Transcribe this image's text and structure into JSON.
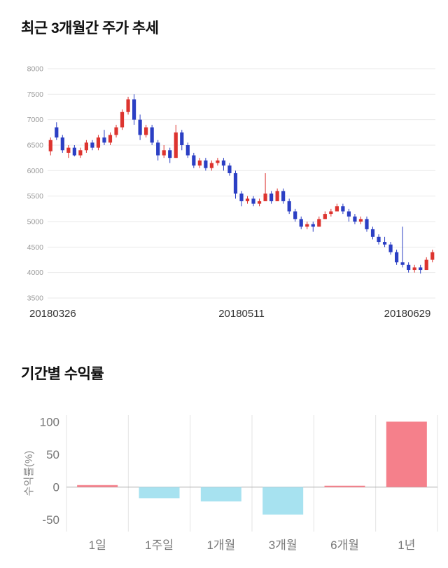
{
  "section1": {
    "title": "최근 3개월간 주가 추세"
  },
  "section2": {
    "title": "기간별 수익률"
  },
  "chart_data": [
    {
      "type": "candlestick",
      "title": "최근 3개월간 주가 추세",
      "ylim": [
        3500,
        8000
      ],
      "yticks": [
        3500,
        4000,
        4500,
        5000,
        5500,
        6000,
        6500,
        7000,
        7500,
        8000
      ],
      "xtick_labels": [
        "20180326",
        "20180511",
        "20180629"
      ],
      "up_color": "#dd342f",
      "down_color": "#2b3fc4",
      "grid_color": "#e9e9e9",
      "tick_color": "#999999",
      "xlabel_color": "#333333",
      "candles": [
        [
          6380,
          6650,
          6300,
          6600
        ],
        [
          6850,
          6950,
          6600,
          6650
        ],
        [
          6650,
          6700,
          6350,
          6400
        ],
        [
          6350,
          6500,
          6250,
          6450
        ],
        [
          6450,
          6500,
          6280,
          6300
        ],
        [
          6300,
          6450,
          6250,
          6400
        ],
        [
          6400,
          6600,
          6350,
          6550
        ],
        [
          6550,
          6600,
          6400,
          6450
        ],
        [
          6450,
          6700,
          6400,
          6650
        ],
        [
          6650,
          6800,
          6500,
          6550
        ],
        [
          6550,
          6750,
          6500,
          6700
        ],
        [
          6700,
          6900,
          6650,
          6850
        ],
        [
          6850,
          7200,
          6800,
          7150
        ],
        [
          7150,
          7450,
          7100,
          7400
        ],
        [
          7400,
          7500,
          6900,
          7000
        ],
        [
          7000,
          7100,
          6600,
          6700
        ],
        [
          6700,
          6900,
          6650,
          6850
        ],
        [
          6850,
          6900,
          6500,
          6550
        ],
        [
          6550,
          6600,
          6200,
          6300
        ],
        [
          6300,
          6500,
          6250,
          6400
        ],
        [
          6400,
          6450,
          6150,
          6250
        ],
        [
          6250,
          6900,
          6250,
          6750
        ],
        [
          6750,
          6800,
          6400,
          6500
        ],
        [
          6500,
          6550,
          6250,
          6300
        ],
        [
          6300,
          6350,
          6050,
          6100
        ],
        [
          6100,
          6250,
          6050,
          6200
        ],
        [
          6200,
          6250,
          6000,
          6050
        ],
        [
          6050,
          6200,
          6000,
          6150
        ],
        [
          6150,
          6250,
          6100,
          6200
        ],
        [
          6200,
          6250,
          6000,
          6100
        ],
        [
          6100,
          6150,
          5900,
          5950
        ],
        [
          5950,
          6000,
          5450,
          5550
        ],
        [
          5550,
          5600,
          5300,
          5400
        ],
        [
          5400,
          5500,
          5350,
          5450
        ],
        [
          5450,
          5500,
          5300,
          5350
        ],
        [
          5350,
          5450,
          5300,
          5400
        ],
        [
          5400,
          5950,
          5400,
          5550
        ],
        [
          5550,
          5600,
          5350,
          5400
        ],
        [
          5400,
          5650,
          5400,
          5600
        ],
        [
          5600,
          5650,
          5350,
          5400
        ],
        [
          5400,
          5450,
          5150,
          5200
        ],
        [
          5200,
          5250,
          5000,
          5050
        ],
        [
          5050,
          5100,
          4850,
          4900
        ],
        [
          4900,
          5000,
          4850,
          4950
        ],
        [
          4950,
          5000,
          4800,
          4900
        ],
        [
          4900,
          5100,
          4900,
          5050
        ],
        [
          5050,
          5200,
          5050,
          5150
        ],
        [
          5150,
          5250,
          5100,
          5200
        ],
        [
          5200,
          5350,
          5200,
          5300
        ],
        [
          5300,
          5350,
          5150,
          5200
        ],
        [
          5200,
          5250,
          5000,
          5100
        ],
        [
          5100,
          5150,
          4950,
          5000
        ],
        [
          5000,
          5100,
          4950,
          5050
        ],
        [
          5050,
          5100,
          4800,
          4850
        ],
        [
          4850,
          4900,
          4650,
          4700
        ],
        [
          4700,
          4750,
          4550,
          4600
        ],
        [
          4600,
          4700,
          4500,
          4550
        ],
        [
          4550,
          4600,
          4350,
          4400
        ],
        [
          4400,
          4450,
          4150,
          4200
        ],
        [
          4200,
          4900,
          4100,
          4150
        ],
        [
          4150,
          4200,
          4000,
          4050
        ],
        [
          4050,
          4150,
          4000,
          4100
        ],
        [
          4100,
          4150,
          3980,
          4050
        ],
        [
          4050,
          4300,
          4050,
          4250
        ],
        [
          4250,
          4450,
          4200,
          4400
        ]
      ]
    },
    {
      "type": "bar",
      "title": "기간별 수익률",
      "categories": [
        "1일",
        "1주일",
        "1개월",
        "3개월",
        "6개월",
        "1년"
      ],
      "values": [
        3,
        -17,
        -22,
        -42,
        2,
        100
      ],
      "ylabel": "수익률(%)",
      "yticks": [
        100,
        50,
        0,
        -50
      ],
      "ylim": [
        -68,
        110
      ],
      "positive_color": "#f5808b",
      "negative_color": "#a7e2f0",
      "grid_color": "#e3e3e3",
      "zero_line_color": "#aaaaaa",
      "tick_color": "#777777",
      "category_color": "#777777",
      "ylabel_color": "#888888"
    }
  ]
}
